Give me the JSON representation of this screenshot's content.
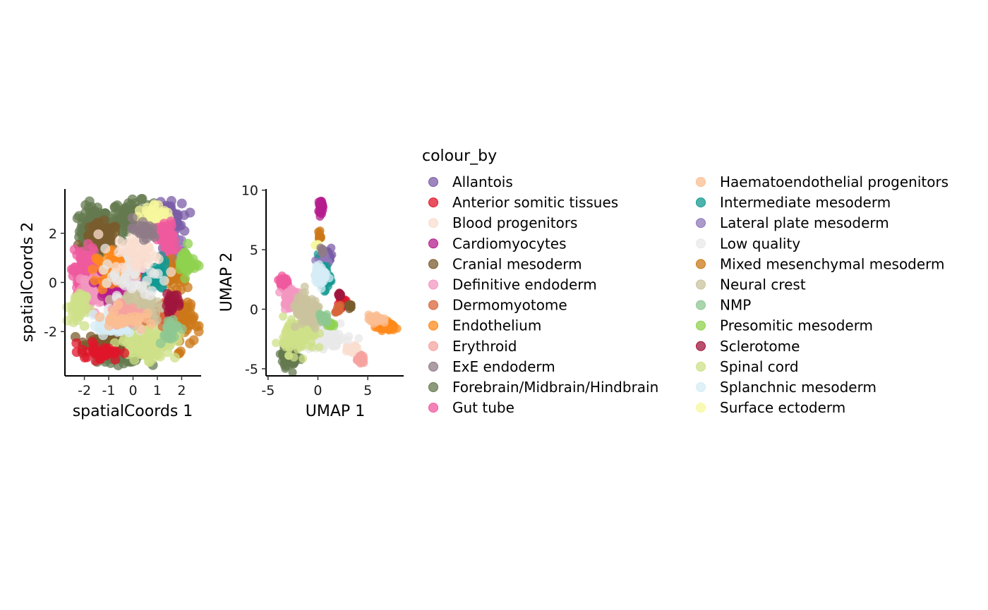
{
  "legend": {
    "title": "colour_by",
    "entries": [
      {
        "label": "Allantois",
        "color": "#7b5ea7"
      },
      {
        "label": "Anterior somitic tissues",
        "color": "#e0162b"
      },
      {
        "label": "Blood progenitors",
        "color": "#f9decf"
      },
      {
        "label": "Cardiomyocytes",
        "color": "#b51d8d"
      },
      {
        "label": "Cranial mesoderm",
        "color": "#7a5c2e"
      },
      {
        "label": "Definitive endoderm",
        "color": "#f397c0"
      },
      {
        "label": "Dermomyotome",
        "color": "#d8653a"
      },
      {
        "label": "Endothelium",
        "color": "#ff891c"
      },
      {
        "label": "Erythroid",
        "color": "#f5a3a0"
      },
      {
        "label": "ExE endoderm",
        "color": "#8f7b87"
      },
      {
        "label": "Forebrain/Midbrain/Hindbrain",
        "color": "#647a4f"
      },
      {
        "label": "Gut tube",
        "color": "#ef5a9d"
      },
      {
        "label": "Haematoendothelial progenitors",
        "color": "#fbbe92"
      },
      {
        "label": "Intermediate mesoderm",
        "color": "#139992"
      },
      {
        "label": "Lateral plate mesoderm",
        "color": "#8f78b8"
      },
      {
        "label": "Low quality",
        "color": "#e8e8e8"
      },
      {
        "label": "Mixed mesenchymal mesoderm",
        "color": "#cc7818"
      },
      {
        "label": "Neural crest",
        "color": "#c9c39d"
      },
      {
        "label": "NMP",
        "color": "#8ec792"
      },
      {
        "label": "Presomitic mesoderm",
        "color": "#8fd14f"
      },
      {
        "label": "Sclerotome",
        "color": "#a0153e"
      },
      {
        "label": "Spinal cord",
        "color": "#cde088"
      },
      {
        "label": "Splanchnic mesoderm",
        "color": "#d5ecf6"
      },
      {
        "label": "Surface ectoderm",
        "color": "#f7f79e"
      }
    ]
  },
  "chart_data": [
    {
      "type": "scatter",
      "xlabel": "spatialCoords 1",
      "ylabel": "spatialCoords 2",
      "xlim": [
        -2.8,
        2.8
      ],
      "ylim": [
        -3.8,
        3.8
      ],
      "x_ticks": [
        -2,
        -1,
        0,
        1,
        2
      ],
      "y_ticks": [
        -2,
        0,
        2
      ],
      "grid": false,
      "legend_placement": "right",
      "clusters": [
        {
          "category": "Forebrain/Midbrain/Hindbrain",
          "cx": -1.6,
          "cy": 2.1,
          "sx": 0.5,
          "sy": 0.8,
          "n": 150
        },
        {
          "category": "Forebrain/Midbrain/Hindbrain",
          "cx": 0.0,
          "cy": 2.7,
          "sx": 0.7,
          "sy": 0.5,
          "n": 130
        },
        {
          "category": "Forebrain/Midbrain/Hindbrain",
          "cx": -0.4,
          "cy": -2.9,
          "sx": 0.9,
          "sy": 0.3,
          "n": 90
        },
        {
          "category": "Cranial mesoderm",
          "cx": -1.3,
          "cy": 1.8,
          "sx": 0.6,
          "sy": 0.5,
          "n": 70
        },
        {
          "category": "Cranial mesoderm",
          "cx": -1.0,
          "cy": -2.4,
          "sx": 0.8,
          "sy": 0.3,
          "n": 50
        },
        {
          "category": "Allantois",
          "cx": 1.4,
          "cy": 2.6,
          "sx": 0.5,
          "sy": 0.5,
          "n": 110
        },
        {
          "category": "Lateral plate mesoderm",
          "cx": 1.6,
          "cy": 1.4,
          "sx": 0.4,
          "sy": 0.6,
          "n": 60
        },
        {
          "category": "Surface ectoderm",
          "cx": 0.9,
          "cy": 2.6,
          "sx": 0.4,
          "sy": 0.5,
          "n": 70
        },
        {
          "category": "Gut tube",
          "cx": -2.0,
          "cy": 0.3,
          "sx": 0.4,
          "sy": 0.9,
          "n": 110
        },
        {
          "category": "Gut tube",
          "cx": 1.4,
          "cy": 1.7,
          "sx": 0.3,
          "sy": 0.6,
          "n": 60
        },
        {
          "category": "Definitive endoderm",
          "cx": -1.7,
          "cy": -0.3,
          "sx": 0.4,
          "sy": 0.6,
          "n": 50
        },
        {
          "category": "Cardiomyocytes",
          "cx": -0.9,
          "cy": -0.1,
          "sx": 0.4,
          "sy": 0.4,
          "n": 80
        },
        {
          "category": "Cardiomyocytes",
          "cx": 0.1,
          "cy": 0.6,
          "sx": 0.3,
          "sy": 0.4,
          "n": 50
        },
        {
          "category": "Endothelium",
          "cx": -0.8,
          "cy": 0.6,
          "sx": 0.6,
          "sy": 0.5,
          "n": 70
        },
        {
          "category": "Mixed mesenchymal mesoderm",
          "cx": 1.9,
          "cy": -1.6,
          "sx": 0.5,
          "sy": 0.9,
          "n": 80
        },
        {
          "category": "Mixed mesenchymal mesoderm",
          "cx": 1.7,
          "cy": 0.3,
          "sx": 0.4,
          "sy": 0.4,
          "n": 40
        },
        {
          "category": "Intermediate mesoderm",
          "cx": 1.0,
          "cy": 0.2,
          "sx": 0.3,
          "sy": 0.5,
          "n": 45
        },
        {
          "category": "Presomitic mesoderm",
          "cx": 2.2,
          "cy": 0.8,
          "sx": 0.3,
          "sy": 0.5,
          "n": 40
        },
        {
          "category": "Spinal cord",
          "cx": 0.6,
          "cy": -2.4,
          "sx": 1.0,
          "sy": 0.6,
          "n": 120
        },
        {
          "category": "Spinal cord",
          "cx": -2.3,
          "cy": -1.0,
          "sx": 0.3,
          "sy": 0.6,
          "n": 40
        },
        {
          "category": "Splanchnic mesoderm",
          "cx": -0.7,
          "cy": -1.7,
          "sx": 0.6,
          "sy": 0.4,
          "n": 80
        },
        {
          "category": "Anterior somitic tissues",
          "cx": -1.3,
          "cy": -2.8,
          "sx": 0.7,
          "sy": 0.3,
          "n": 40
        },
        {
          "category": "Dermomyotome",
          "cx": 1.3,
          "cy": -1.2,
          "sx": 0.4,
          "sy": 0.4,
          "n": 35
        },
        {
          "category": "Neural crest",
          "cx": 0.3,
          "cy": -0.9,
          "sx": 0.8,
          "sy": 0.6,
          "n": 60
        },
        {
          "category": "Low quality",
          "cx": 0.0,
          "cy": 0.2,
          "sx": 1.0,
          "sy": 1.0,
          "n": 50
        },
        {
          "category": "Blood progenitors",
          "cx": 0.2,
          "cy": 1.2,
          "sx": 0.8,
          "sy": 0.6,
          "n": 40
        },
        {
          "category": "Erythroid",
          "cx": -0.3,
          "cy": -1.2,
          "sx": 0.6,
          "sy": 0.4,
          "n": 30
        },
        {
          "category": "Haematoendothelial progenitors",
          "cx": -0.4,
          "cy": -1.5,
          "sx": 0.7,
          "sy": 0.4,
          "n": 30
        },
        {
          "category": "Sclerotome",
          "cx": 1.6,
          "cy": -0.8,
          "sx": 0.3,
          "sy": 0.3,
          "n": 20
        },
        {
          "category": "ExE endoderm",
          "cx": 0.4,
          "cy": 2.1,
          "sx": 0.5,
          "sy": 0.4,
          "n": 25
        },
        {
          "category": "NMP",
          "cx": 1.5,
          "cy": -1.9,
          "sx": 0.4,
          "sy": 0.4,
          "n": 25
        }
      ]
    },
    {
      "type": "scatter",
      "xlabel": "UMAP 1",
      "ylabel": "UMAP 2",
      "xlim": [
        -5.2,
        8.6
      ],
      "ylim": [
        -5.6,
        10.1
      ],
      "x_ticks": [
        -5,
        0,
        5
      ],
      "y_ticks": [
        -5,
        0,
        5,
        10
      ],
      "grid": false,
      "legend_placement": "right",
      "clusters": [
        {
          "category": "Cardiomyocytes",
          "cx": 0.3,
          "cy": 8.6,
          "sx": 0.15,
          "sy": 0.45,
          "n": 45
        },
        {
          "category": "Mixed mesenchymal mesoderm",
          "cx": 0.2,
          "cy": 6.2,
          "sx": 0.15,
          "sy": 0.4,
          "n": 12
        },
        {
          "category": "Allantois",
          "cx": 0.9,
          "cy": 4.5,
          "sx": 0.45,
          "sy": 0.4,
          "n": 40
        },
        {
          "category": "Lateral plate mesoderm",
          "cx": 0.5,
          "cy": 4.0,
          "sx": 0.5,
          "sy": 0.5,
          "n": 25
        },
        {
          "category": "Intermediate mesoderm",
          "cx": 0.6,
          "cy": 2.7,
          "sx": 0.5,
          "sy": 0.9,
          "n": 50
        },
        {
          "category": "Splanchnic mesoderm",
          "cx": 0.3,
          "cy": 2.8,
          "sx": 0.5,
          "sy": 0.7,
          "n": 55
        },
        {
          "category": "Surface ectoderm",
          "cx": -0.1,
          "cy": 5.4,
          "sx": 0.2,
          "sy": 0.15,
          "n": 8
        },
        {
          "category": "Anterior somitic tissues",
          "cx": 2.4,
          "cy": 0.6,
          "sx": 0.3,
          "sy": 0.3,
          "n": 35
        },
        {
          "category": "Sclerotome",
          "cx": 2.2,
          "cy": 1.2,
          "sx": 0.2,
          "sy": 0.2,
          "n": 15
        },
        {
          "category": "Cranial mesoderm",
          "cx": 3.2,
          "cy": 0.3,
          "sx": 0.2,
          "sy": 0.2,
          "n": 12
        },
        {
          "category": "Endothelium",
          "cx": 6.8,
          "cy": -1.5,
          "sx": 0.8,
          "sy": 0.25,
          "n": 100
        },
        {
          "category": "Haematoendothelial progenitors",
          "cx": 5.8,
          "cy": -0.8,
          "sx": 0.6,
          "sy": 0.3,
          "n": 40
        },
        {
          "category": "Erythroid",
          "cx": 4.3,
          "cy": -4.2,
          "sx": 0.3,
          "sy": 0.3,
          "n": 35
        },
        {
          "category": "Blood progenitors",
          "cx": 3.4,
          "cy": -3.3,
          "sx": 0.6,
          "sy": 0.2,
          "n": 30
        },
        {
          "category": "Low quality",
          "cx": 1.0,
          "cy": -2.3,
          "sx": 2.0,
          "sy": 1.0,
          "n": 60
        },
        {
          "category": "Gut tube",
          "cx": -3.5,
          "cy": 2.3,
          "sx": 0.35,
          "sy": 0.35,
          "n": 50
        },
        {
          "category": "Definitive endoderm",
          "cx": -2.8,
          "cy": 1.0,
          "sx": 0.6,
          "sy": 0.8,
          "n": 50
        },
        {
          "category": "Forebrain/Midbrain/Hindbrain",
          "cx": -2.8,
          "cy": -4.0,
          "sx": 0.7,
          "sy": 0.7,
          "n": 90
        },
        {
          "category": "Spinal cord",
          "cx": -1.8,
          "cy": -2.2,
          "sx": 1.4,
          "sy": 1.2,
          "n": 120
        },
        {
          "category": "Neural crest",
          "cx": -1.0,
          "cy": -0.3,
          "sx": 1.3,
          "sy": 1.1,
          "n": 90
        },
        {
          "category": "Presomitic mesoderm",
          "cx": 1.2,
          "cy": -1.3,
          "sx": 0.3,
          "sy": 0.3,
          "n": 15
        },
        {
          "category": "NMP",
          "cx": 0.6,
          "cy": -0.7,
          "sx": 0.4,
          "sy": 0.4,
          "n": 20
        },
        {
          "category": "Dermomyotome",
          "cx": 2.0,
          "cy": 0.0,
          "sx": 0.3,
          "sy": 0.3,
          "n": 15
        },
        {
          "category": "ExE endoderm",
          "cx": 0.4,
          "cy": 4.9,
          "sx": 0.2,
          "sy": 0.2,
          "n": 8
        }
      ]
    }
  ]
}
